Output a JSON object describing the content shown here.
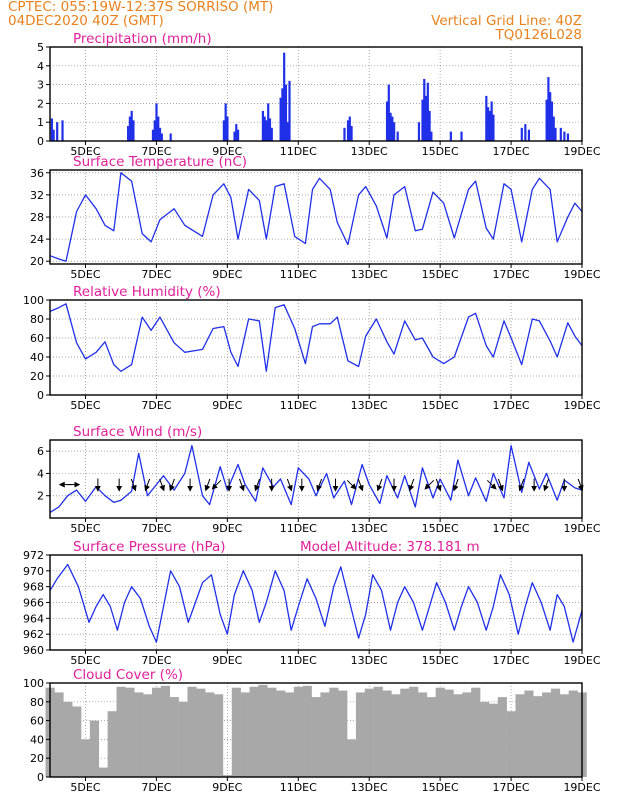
{
  "header": {
    "line1_left": "CPTEC:   055:19W-12:37S   SORRISO (MT)",
    "line2_left": "04DEC2020 40Z (GMT)",
    "line2_right": "Vertical Grid Line: 40Z",
    "line3_right": "TQ0126L028",
    "model_altitude": "Model Altitude: 378.181 m"
  },
  "colors": {
    "header": "#e8821e",
    "title": "#e0209a",
    "series": "#2030e8",
    "cloud": "#a8a8a8",
    "grid": "#888888"
  },
  "x_axis": {
    "start_day": 4.0,
    "end_day": 19.0,
    "tick_days": [
      5,
      7,
      9,
      11,
      13,
      15,
      17,
      19
    ],
    "tick_labels": [
      "5DEC",
      "7DEC",
      "9DEC",
      "11DEC",
      "13DEC",
      "15DEC",
      "17DEC",
      "19DEC"
    ]
  },
  "chart_data": [
    {
      "type": "bar",
      "key": "precip",
      "title": "Precipitation (mm/h)",
      "ylim": [
        0,
        5
      ],
      "yticks": [
        0,
        1,
        2,
        3,
        4,
        5
      ],
      "yticklabels": [
        "0",
        "1",
        "2",
        "3",
        "4",
        "5"
      ],
      "x": [
        4.05,
        4.1,
        4.2,
        4.35,
        6.2,
        6.25,
        6.3,
        6.35,
        6.9,
        6.95,
        7.0,
        7.05,
        7.1,
        7.15,
        7.4,
        8.9,
        8.95,
        9.0,
        9.2,
        9.25,
        9.3,
        10.0,
        10.05,
        10.1,
        10.15,
        10.2,
        10.25,
        10.5,
        10.55,
        10.6,
        10.65,
        10.7,
        10.75,
        12.3,
        12.4,
        12.45,
        12.5,
        13.5,
        13.55,
        13.6,
        13.65,
        13.7,
        13.8,
        14.4,
        14.5,
        14.55,
        14.6,
        14.65,
        14.7,
        14.75,
        15.3,
        15.6,
        16.3,
        16.35,
        16.4,
        16.45,
        16.5,
        17.3,
        17.4,
        17.5,
        18.0,
        18.05,
        18.1,
        18.15,
        18.2,
        18.25,
        18.4,
        18.5,
        18.6
      ],
      "values": [
        1.2,
        0.6,
        1.0,
        1.1,
        0.8,
        1.3,
        1.6,
        1.1,
        0.6,
        1.1,
        2.0,
        1.3,
        0.7,
        0.4,
        0.4,
        1.1,
        2.0,
        1.3,
        0.5,
        0.9,
        0.6,
        1.6,
        1.3,
        1.1,
        2.0,
        1.2,
        0.7,
        2.3,
        2.8,
        4.7,
        3.0,
        1.0,
        3.2,
        0.7,
        1.1,
        1.3,
        0.8,
        2.1,
        3.0,
        1.5,
        1.3,
        1.0,
        0.5,
        1.0,
        2.2,
        3.3,
        2.4,
        3.1,
        1.6,
        0.5,
        0.5,
        0.5,
        2.4,
        1.8,
        1.6,
        2.1,
        1.4,
        0.7,
        0.9,
        0.6,
        2.2,
        3.4,
        2.6,
        2.1,
        1.3,
        0.7,
        0.7,
        0.5,
        0.4
      ]
    },
    {
      "type": "line",
      "key": "temp",
      "title": "Surface Temperature (nC)",
      "ylim": [
        19.5,
        36.5
      ],
      "yticks": [
        20,
        24,
        28,
        32,
        36
      ],
      "yticklabels": [
        "20",
        "24",
        "28",
        "32",
        "36"
      ],
      "x": [
        4.0,
        4.25,
        4.45,
        4.75,
        5.0,
        5.3,
        5.55,
        5.8,
        6.0,
        6.3,
        6.6,
        6.85,
        7.1,
        7.5,
        7.8,
        8.3,
        8.6,
        8.9,
        9.1,
        9.3,
        9.6,
        9.9,
        10.1,
        10.35,
        10.6,
        10.9,
        11.2,
        11.4,
        11.6,
        11.9,
        12.1,
        12.4,
        12.7,
        12.9,
        13.2,
        13.5,
        13.7,
        14.0,
        14.3,
        14.5,
        14.8,
        15.1,
        15.4,
        15.8,
        16.0,
        16.3,
        16.5,
        16.8,
        17.0,
        17.3,
        17.6,
        17.8,
        18.1,
        18.3,
        18.6,
        18.8,
        19.0
      ],
      "values": [
        21.0,
        20.4,
        20.0,
        29.0,
        32.0,
        29.5,
        26.5,
        25.5,
        36.0,
        34.5,
        25.0,
        23.5,
        27.5,
        29.5,
        26.5,
        24.5,
        32.0,
        34.0,
        31.5,
        24.0,
        33.0,
        31.0,
        24.0,
        33.5,
        34.0,
        24.5,
        23.2,
        33.0,
        35.0,
        33.0,
        27.0,
        23.0,
        32.0,
        33.5,
        30.0,
        24.2,
        32.0,
        33.5,
        25.5,
        25.8,
        32.5,
        30.5,
        24.2,
        33.0,
        34.5,
        26.0,
        24.0,
        34.0,
        33.0,
        23.5,
        33.0,
        35.0,
        33.0,
        23.5,
        28.0,
        30.5,
        29.0
      ]
    },
    {
      "type": "line",
      "key": "rh",
      "title": "Relative Humidity (%)",
      "ylim": [
        0,
        100
      ],
      "yticks": [
        0,
        20,
        40,
        60,
        80,
        100
      ],
      "yticklabels": [
        "0",
        "20",
        "40",
        "60",
        "80",
        "100"
      ],
      "x": [
        4.0,
        4.25,
        4.45,
        4.75,
        5.0,
        5.3,
        5.55,
        5.8,
        6.0,
        6.3,
        6.6,
        6.85,
        7.1,
        7.5,
        7.8,
        8.3,
        8.6,
        8.9,
        9.1,
        9.3,
        9.6,
        9.9,
        10.1,
        10.35,
        10.6,
        10.9,
        11.2,
        11.4,
        11.6,
        11.9,
        12.1,
        12.4,
        12.7,
        12.9,
        13.2,
        13.5,
        13.7,
        14.0,
        14.3,
        14.5,
        14.8,
        15.1,
        15.4,
        15.8,
        16.0,
        16.3,
        16.5,
        16.8,
        17.0,
        17.3,
        17.6,
        17.8,
        18.1,
        18.3,
        18.6,
        18.8,
        19.0
      ],
      "values": [
        88,
        92,
        96,
        55,
        38,
        45,
        56,
        32,
        25,
        32,
        82,
        68,
        82,
        55,
        45,
        48,
        70,
        72,
        45,
        30,
        80,
        78,
        25,
        92,
        95,
        70,
        33,
        72,
        75,
        75,
        82,
        36,
        30,
        62,
        80,
        56,
        43,
        78,
        58,
        60,
        40,
        33,
        40,
        82,
        86,
        52,
        40,
        78,
        60,
        32,
        80,
        78,
        57,
        40,
        76,
        62,
        52
      ]
    },
    {
      "type": "line",
      "key": "wind",
      "title": "Surface Wind (m/s)",
      "ylim": [
        0,
        7
      ],
      "yticks": [
        2,
        4,
        6
      ],
      "yticklabels": [
        "2",
        "4",
        "6"
      ],
      "x": [
        4.0,
        4.25,
        4.5,
        4.75,
        5.0,
        5.3,
        5.55,
        5.8,
        6.0,
        6.3,
        6.5,
        6.75,
        7.0,
        7.2,
        7.5,
        7.8,
        8.0,
        8.3,
        8.5,
        8.8,
        9.0,
        9.3,
        9.5,
        9.8,
        10.0,
        10.3,
        10.5,
        10.8,
        11.0,
        11.3,
        11.5,
        11.8,
        12.0,
        12.3,
        12.5,
        12.8,
        13.0,
        13.3,
        13.5,
        13.8,
        14.0,
        14.3,
        14.5,
        14.8,
        15.0,
        15.3,
        15.5,
        15.8,
        16.0,
        16.3,
        16.5,
        16.8,
        17.0,
        17.3,
        17.5,
        17.8,
        18.0,
        18.3,
        18.5,
        18.8,
        19.0
      ],
      "values": [
        0.5,
        1.0,
        2.0,
        2.5,
        1.5,
        2.8,
        2.0,
        1.4,
        1.6,
        2.4,
        5.8,
        2.0,
        3.0,
        3.8,
        2.5,
        4.0,
        6.5,
        2.0,
        1.2,
        4.6,
        2.5,
        4.8,
        3.0,
        1.5,
        4.5,
        2.8,
        3.5,
        1.2,
        4.5,
        3.5,
        2.0,
        4.0,
        1.8,
        3.3,
        1.2,
        4.8,
        3.0,
        1.3,
        3.8,
        1.8,
        3.8,
        1.0,
        4.5,
        1.8,
        3.5,
        1.6,
        5.2,
        2.0,
        3.6,
        1.5,
        4.0,
        1.8,
        6.5,
        2.3,
        5.0,
        2.6,
        4.0,
        1.6,
        3.4,
        2.7,
        2.5
      ],
      "arrows": [
        {
          "x": 4.45,
          "dir": 270
        },
        {
          "x": 4.65,
          "dir": 90
        },
        {
          "x": 5.35,
          "dir": 180
        },
        {
          "x": 5.95,
          "dir": 180
        },
        {
          "x": 6.35,
          "dir": 160
        },
        {
          "x": 6.75,
          "dir": 200
        },
        {
          "x": 7.15,
          "dir": 160
        },
        {
          "x": 7.45,
          "dir": 200
        },
        {
          "x": 7.95,
          "dir": 180
        },
        {
          "x": 8.45,
          "dir": 200
        },
        {
          "x": 8.7,
          "dir": 225
        },
        {
          "x": 9.05,
          "dir": 180
        },
        {
          "x": 9.4,
          "dir": 160
        },
        {
          "x": 9.85,
          "dir": 200
        },
        {
          "x": 10.25,
          "dir": 180
        },
        {
          "x": 10.75,
          "dir": 160
        },
        {
          "x": 11.1,
          "dir": 180
        },
        {
          "x": 11.6,
          "dir": 200
        },
        {
          "x": 12.05,
          "dir": 180
        },
        {
          "x": 12.5,
          "dir": 135
        },
        {
          "x": 12.75,
          "dir": 160
        },
        {
          "x": 13.3,
          "dir": 200
        },
        {
          "x": 13.7,
          "dir": 180
        },
        {
          "x": 14.2,
          "dir": 200
        },
        {
          "x": 14.7,
          "dir": 225
        },
        {
          "x": 14.95,
          "dir": 160
        },
        {
          "x": 15.45,
          "dir": 200
        },
        {
          "x": 16.45,
          "dir": 135
        },
        {
          "x": 16.7,
          "dir": 160
        },
        {
          "x": 17.3,
          "dir": 200
        },
        {
          "x": 17.65,
          "dir": 180
        },
        {
          "x": 18.0,
          "dir": 200
        },
        {
          "x": 18.5,
          "dir": 180
        },
        {
          "x": 18.95,
          "dir": 160
        }
      ]
    },
    {
      "type": "line",
      "key": "pres",
      "title": "Surface Pressure (hPa)",
      "ylim": [
        960,
        972
      ],
      "yticks": [
        960,
        962,
        964,
        966,
        968,
        970,
        972
      ],
      "yticklabels": [
        "960",
        "962",
        "964",
        "966",
        "968",
        "970",
        "972"
      ],
      "x": [
        4.0,
        4.2,
        4.5,
        4.8,
        5.1,
        5.3,
        5.5,
        5.7,
        5.9,
        6.1,
        6.3,
        6.55,
        6.8,
        7.0,
        7.2,
        7.4,
        7.65,
        7.9,
        8.1,
        8.3,
        8.55,
        8.8,
        9.0,
        9.2,
        9.45,
        9.7,
        9.9,
        10.1,
        10.35,
        10.6,
        10.8,
        11.0,
        11.25,
        11.5,
        11.75,
        12.0,
        12.2,
        12.45,
        12.7,
        12.9,
        13.1,
        13.35,
        13.6,
        13.8,
        14.0,
        14.25,
        14.5,
        14.7,
        14.9,
        15.15,
        15.4,
        15.6,
        15.8,
        16.05,
        16.3,
        16.5,
        16.7,
        16.95,
        17.2,
        17.4,
        17.6,
        17.85,
        18.1,
        18.3,
        18.5,
        18.75,
        19.0
      ],
      "values": [
        967.5,
        969.0,
        970.8,
        968.0,
        963.5,
        965.5,
        967.0,
        965.5,
        962.5,
        966.0,
        968.0,
        966.5,
        963.0,
        961.0,
        965.5,
        970.0,
        968.0,
        963.5,
        966.0,
        968.5,
        969.5,
        964.5,
        962.0,
        967.0,
        970.0,
        967.5,
        963.5,
        966.0,
        970.0,
        967.5,
        962.5,
        965.5,
        969.0,
        966.5,
        963.0,
        968.0,
        970.5,
        966.0,
        961.5,
        964.5,
        969.5,
        967.5,
        962.5,
        966.0,
        968.0,
        966.0,
        962.5,
        965.5,
        968.5,
        966.0,
        962.5,
        965.5,
        968.0,
        966.0,
        962.5,
        965.5,
        969.5,
        967.0,
        962.0,
        965.5,
        968.5,
        966.0,
        962.5,
        967.0,
        965.5,
        961.0,
        965.0
      ]
    },
    {
      "type": "bar",
      "key": "cloud",
      "title": "Cloud Cover (%)",
      "ylim": [
        0,
        100
      ],
      "yticks": [
        0,
        20,
        40,
        60,
        80,
        100
      ],
      "yticklabels": [
        "0",
        "20",
        "40",
        "60",
        "80",
        "100"
      ],
      "x": [
        4.0,
        4.25,
        4.5,
        4.75,
        5.0,
        5.25,
        5.5,
        5.75,
        6.0,
        6.25,
        6.5,
        6.75,
        7.0,
        7.25,
        7.5,
        7.75,
        8.0,
        8.25,
        8.5,
        8.75,
        9.0,
        9.25,
        9.5,
        9.75,
        10.0,
        10.25,
        10.5,
        10.75,
        11.0,
        11.25,
        11.5,
        11.75,
        12.0,
        12.25,
        12.5,
        12.75,
        13.0,
        13.25,
        13.5,
        13.75,
        14.0,
        14.25,
        14.5,
        14.75,
        15.0,
        15.25,
        15.5,
        15.75,
        16.0,
        16.25,
        16.5,
        16.75,
        17.0,
        17.25,
        17.5,
        17.75,
        18.0,
        18.25,
        18.5,
        18.75,
        19.0
      ],
      "values": [
        95,
        90,
        80,
        75,
        40,
        60,
        10,
        70,
        96,
        95,
        90,
        88,
        95,
        97,
        85,
        80,
        96,
        94,
        90,
        88,
        2,
        95,
        90,
        96,
        98,
        95,
        92,
        90,
        96,
        97,
        85,
        90,
        95,
        92,
        40,
        90,
        94,
        96,
        92,
        88,
        94,
        96,
        90,
        85,
        95,
        93,
        88,
        90,
        95,
        80,
        78,
        85,
        70,
        88,
        92,
        86,
        90,
        94,
        88,
        92,
        90
      ]
    }
  ]
}
